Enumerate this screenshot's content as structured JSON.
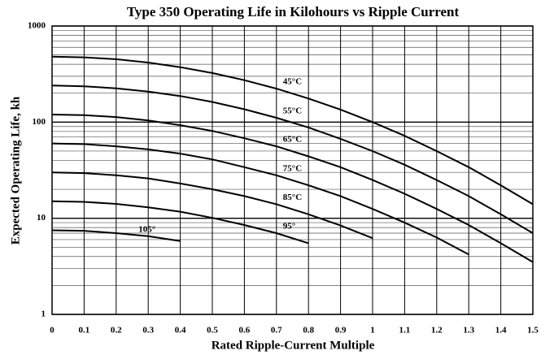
{
  "chart_data": {
    "type": "line",
    "title": "Type 350 Operating Life in Kilohours vs Ripple Current",
    "x_label": "Rated Ripple-Current Multiple",
    "y_label": "Expected Operating Life, kh",
    "y_log": true,
    "grid": true,
    "xlim": [
      0,
      1.5
    ],
    "ylim": [
      1,
      1000
    ],
    "xticks": [
      0,
      0.1,
      0.2,
      0.3,
      0.4,
      0.5,
      0.6,
      0.7,
      0.8,
      0.9,
      1,
      1.1,
      1.2,
      1.3,
      1.4,
      1.5
    ],
    "yticks": [
      1,
      10,
      100,
      1000
    ],
    "y_minor_ticks": [
      2,
      3,
      4,
      5,
      6,
      7,
      8,
      9,
      20,
      30,
      40,
      50,
      60,
      70,
      80,
      90,
      200,
      300,
      400,
      500,
      600,
      700,
      800,
      900
    ],
    "series": [
      {
        "name": "45°C",
        "color": "#000000",
        "x": [
          0,
          0.1,
          0.2,
          0.3,
          0.4,
          0.5,
          0.6,
          0.7,
          0.8,
          0.9,
          1,
          1.1,
          1.2,
          1.3,
          1.4,
          1.5
        ],
        "values": [
          480,
          472,
          451,
          417,
          373,
          324,
          273,
          223,
          176,
          135,
          100,
          72,
          50,
          34,
          22,
          14
        ]
      },
      {
        "name": "55°C",
        "color": "#000000",
        "x": [
          0,
          0.1,
          0.2,
          0.3,
          0.4,
          0.5,
          0.6,
          0.7,
          0.8,
          0.9,
          1,
          1.1,
          1.2,
          1.3,
          1.4,
          1.5
        ],
        "values": [
          240,
          236,
          225,
          208,
          187,
          162,
          136,
          111,
          88,
          67,
          50,
          36,
          25,
          17,
          11,
          7
        ]
      },
      {
        "name": "65°C",
        "color": "#000000",
        "x": [
          0,
          0.1,
          0.2,
          0.3,
          0.4,
          0.5,
          0.6,
          0.7,
          0.8,
          0.9,
          1,
          1.1,
          1.2,
          1.3,
          1.4,
          1.5
        ],
        "values": [
          120,
          118,
          113,
          104,
          93,
          81,
          68,
          56,
          44,
          34,
          25,
          18,
          12.5,
          8.5,
          5.5,
          3.5
        ]
      },
      {
        "name": "75°C",
        "color": "#000000",
        "x": [
          0,
          0.1,
          0.2,
          0.3,
          0.4,
          0.5,
          0.6,
          0.7,
          0.8,
          0.9,
          1,
          1.1,
          1.2,
          1.3
        ],
        "values": [
          60,
          59,
          56,
          52,
          47,
          41,
          34,
          28,
          22,
          17,
          12.5,
          9,
          6.3,
          4.2
        ]
      },
      {
        "name": "85°C",
        "color": "#000000",
        "x": [
          0,
          0.1,
          0.2,
          0.3,
          0.4,
          0.5,
          0.6,
          0.7,
          0.8,
          0.9,
          1
        ],
        "values": [
          30,
          29.5,
          28,
          26,
          23,
          20,
          17,
          14,
          11,
          8.4,
          6.2
        ]
      },
      {
        "name": "95°",
        "color": "#000000",
        "x": [
          0,
          0.1,
          0.2,
          0.3,
          0.4,
          0.5,
          0.6,
          0.7,
          0.8
        ],
        "values": [
          15,
          14.8,
          14.1,
          13,
          11.7,
          10.1,
          8.5,
          7,
          5.5
        ]
      },
      {
        "name": "105°",
        "color": "#000000",
        "x": [
          0,
          0.1,
          0.2,
          0.3,
          0.4
        ],
        "values": [
          7.5,
          7.4,
          7,
          6.5,
          5.8
        ]
      }
    ]
  }
}
